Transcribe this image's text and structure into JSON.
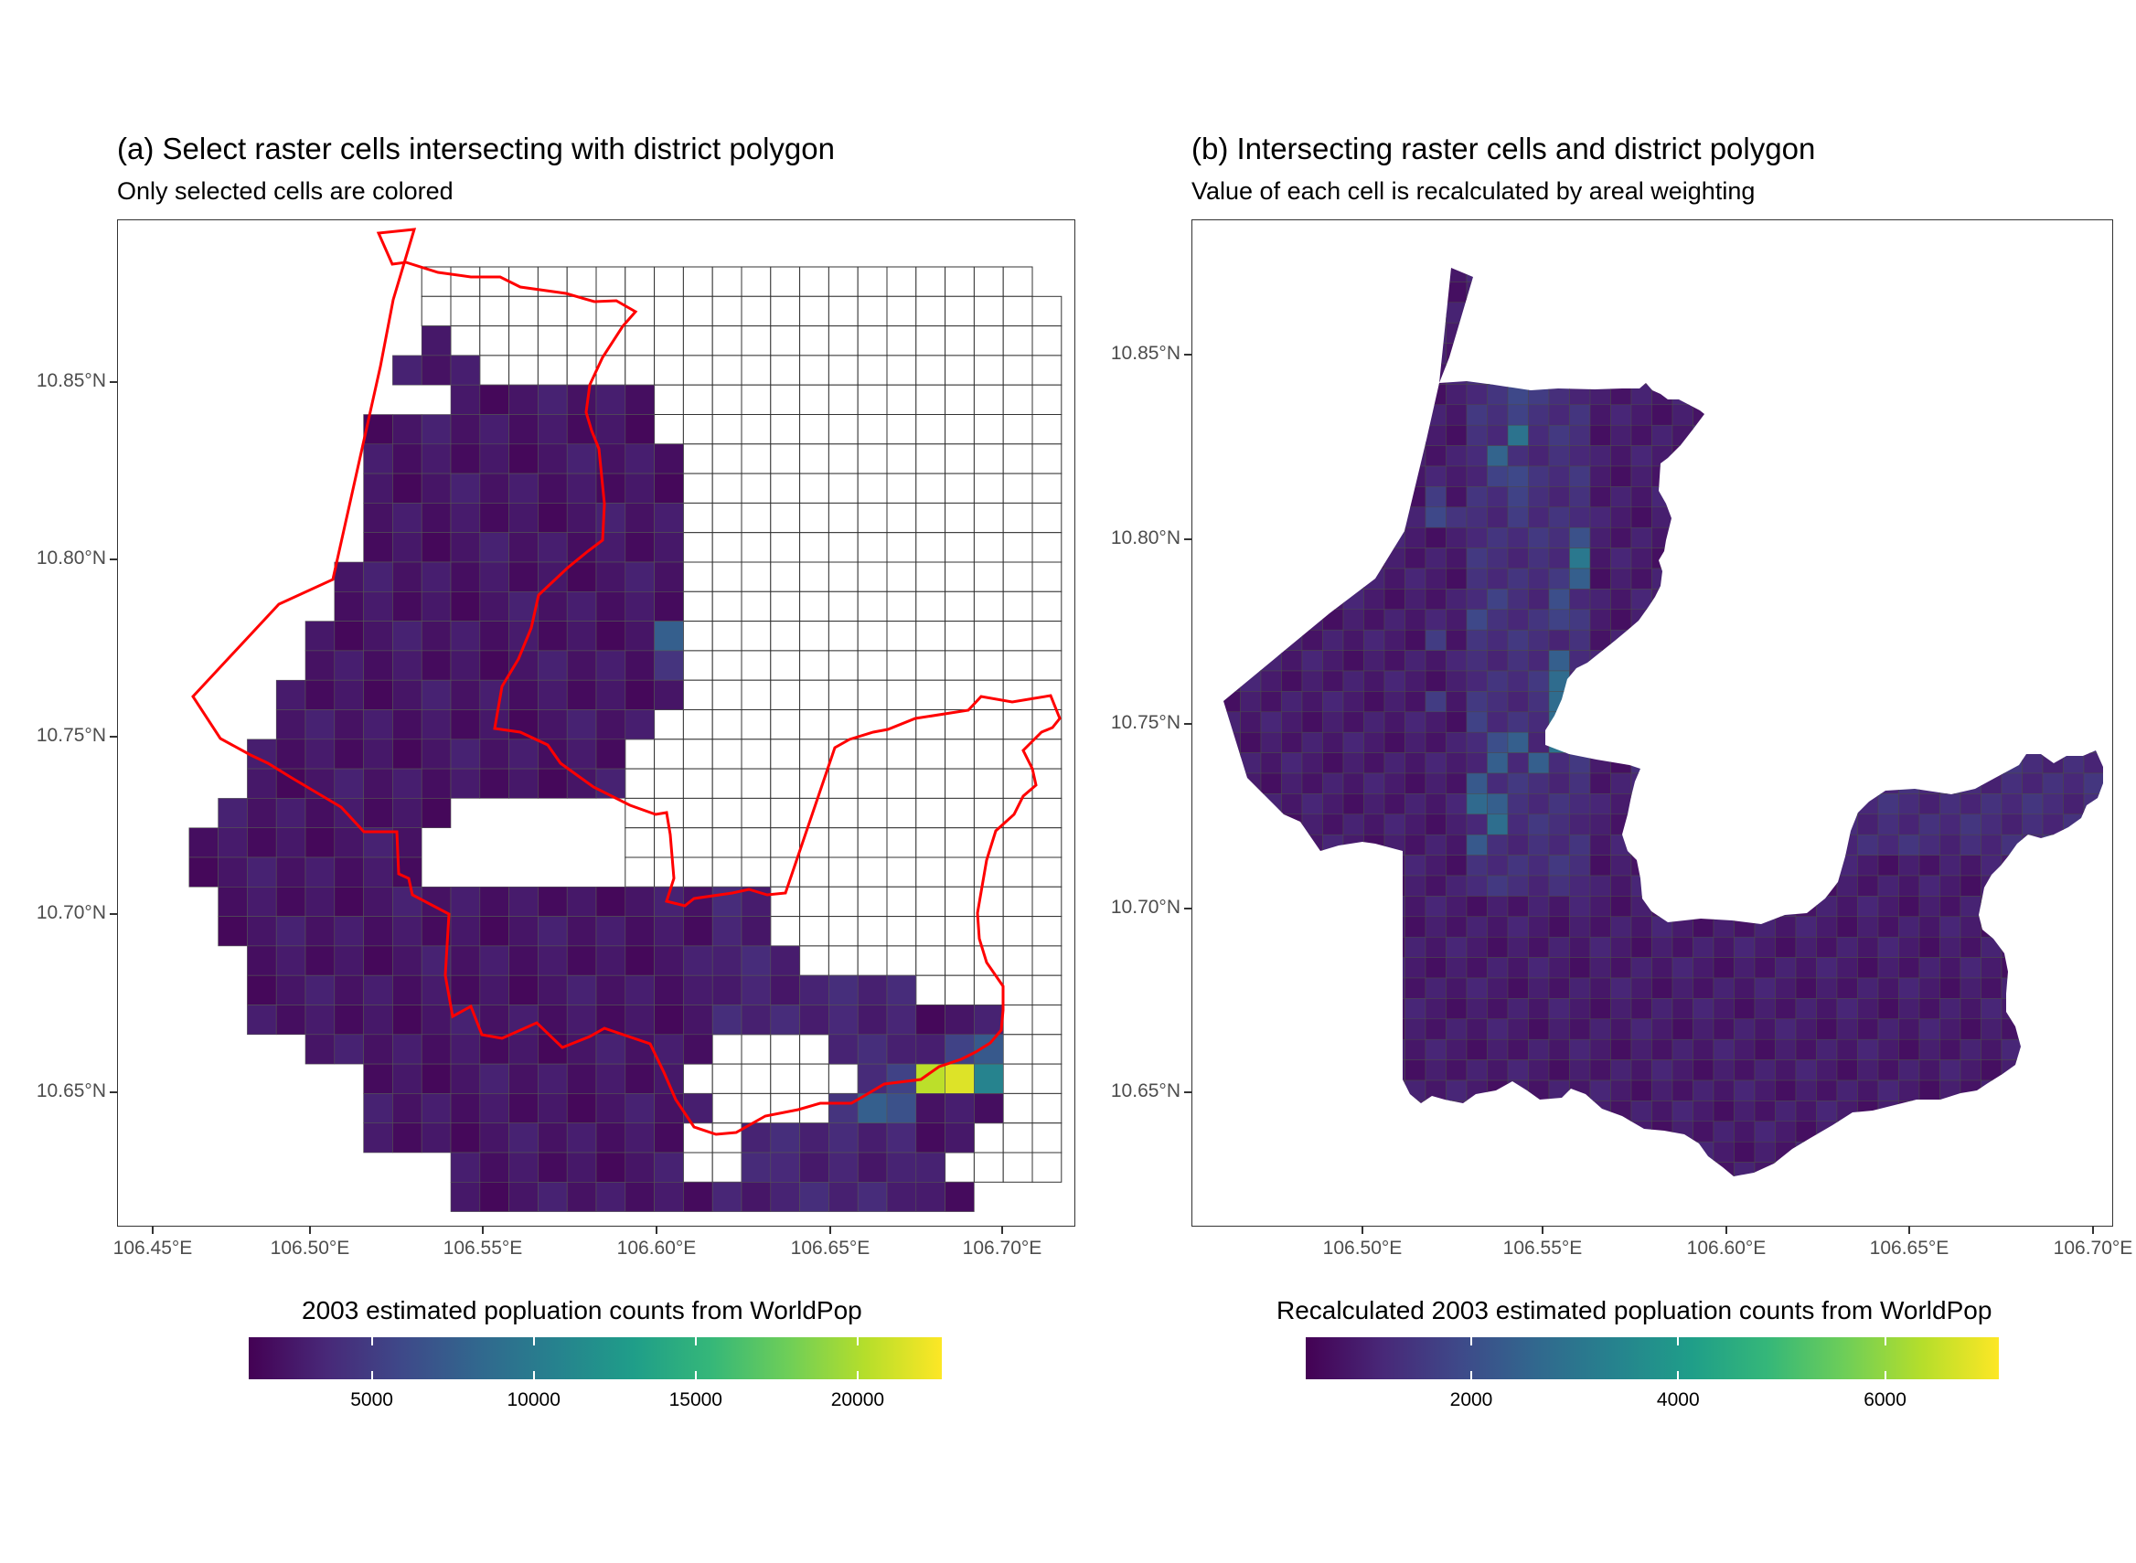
{
  "panels": [
    {
      "id": "a",
      "title": "(a) Select raster cells intersecting with district polygon",
      "subtitle": "Only selected cells are colored",
      "x_ticks": [
        "106.45°E",
        "106.50°E",
        "106.55°E",
        "106.60°E",
        "106.65°E",
        "106.70°E"
      ],
      "y_ticks": [
        "10.85°N",
        "10.80°N",
        "10.75°N",
        "10.70°N",
        "10.65°N"
      ],
      "legend_title": "2003 estimated popluation counts from WorldPop",
      "legend_ticks": [
        "5000",
        "10000",
        "15000",
        "20000"
      ],
      "legend_range": [
        1200,
        22600
      ],
      "legend_tick_values": [
        5000,
        10000,
        15000,
        20000
      ],
      "boundary_color": "#ff0000"
    },
    {
      "id": "b",
      "title": "(b) Intersecting raster cells and district polygon",
      "subtitle": "Value of each cell is recalculated by areal weighting",
      "x_ticks": [
        "106.50°E",
        "106.55°E",
        "106.60°E",
        "106.65°E",
        "106.70°E"
      ],
      "y_ticks": [
        "10.85°N",
        "10.80°N",
        "10.75°N",
        "10.70°N",
        "10.65°N"
      ],
      "legend_title": "Recalculated 2003 estimated popluation counts from WorldPop",
      "legend_ticks": [
        "2000",
        "4000",
        "6000"
      ],
      "legend_range": [
        400,
        7100
      ],
      "legend_tick_values": [
        2000,
        4000,
        6000
      ]
    }
  ],
  "colormap": "viridis",
  "colors": {
    "viridis_low": "#440154",
    "viridis_mid": "#21908c",
    "viridis_high": "#fde725",
    "boundary": "#ff0000",
    "empty_cell_stroke": "#333333"
  }
}
